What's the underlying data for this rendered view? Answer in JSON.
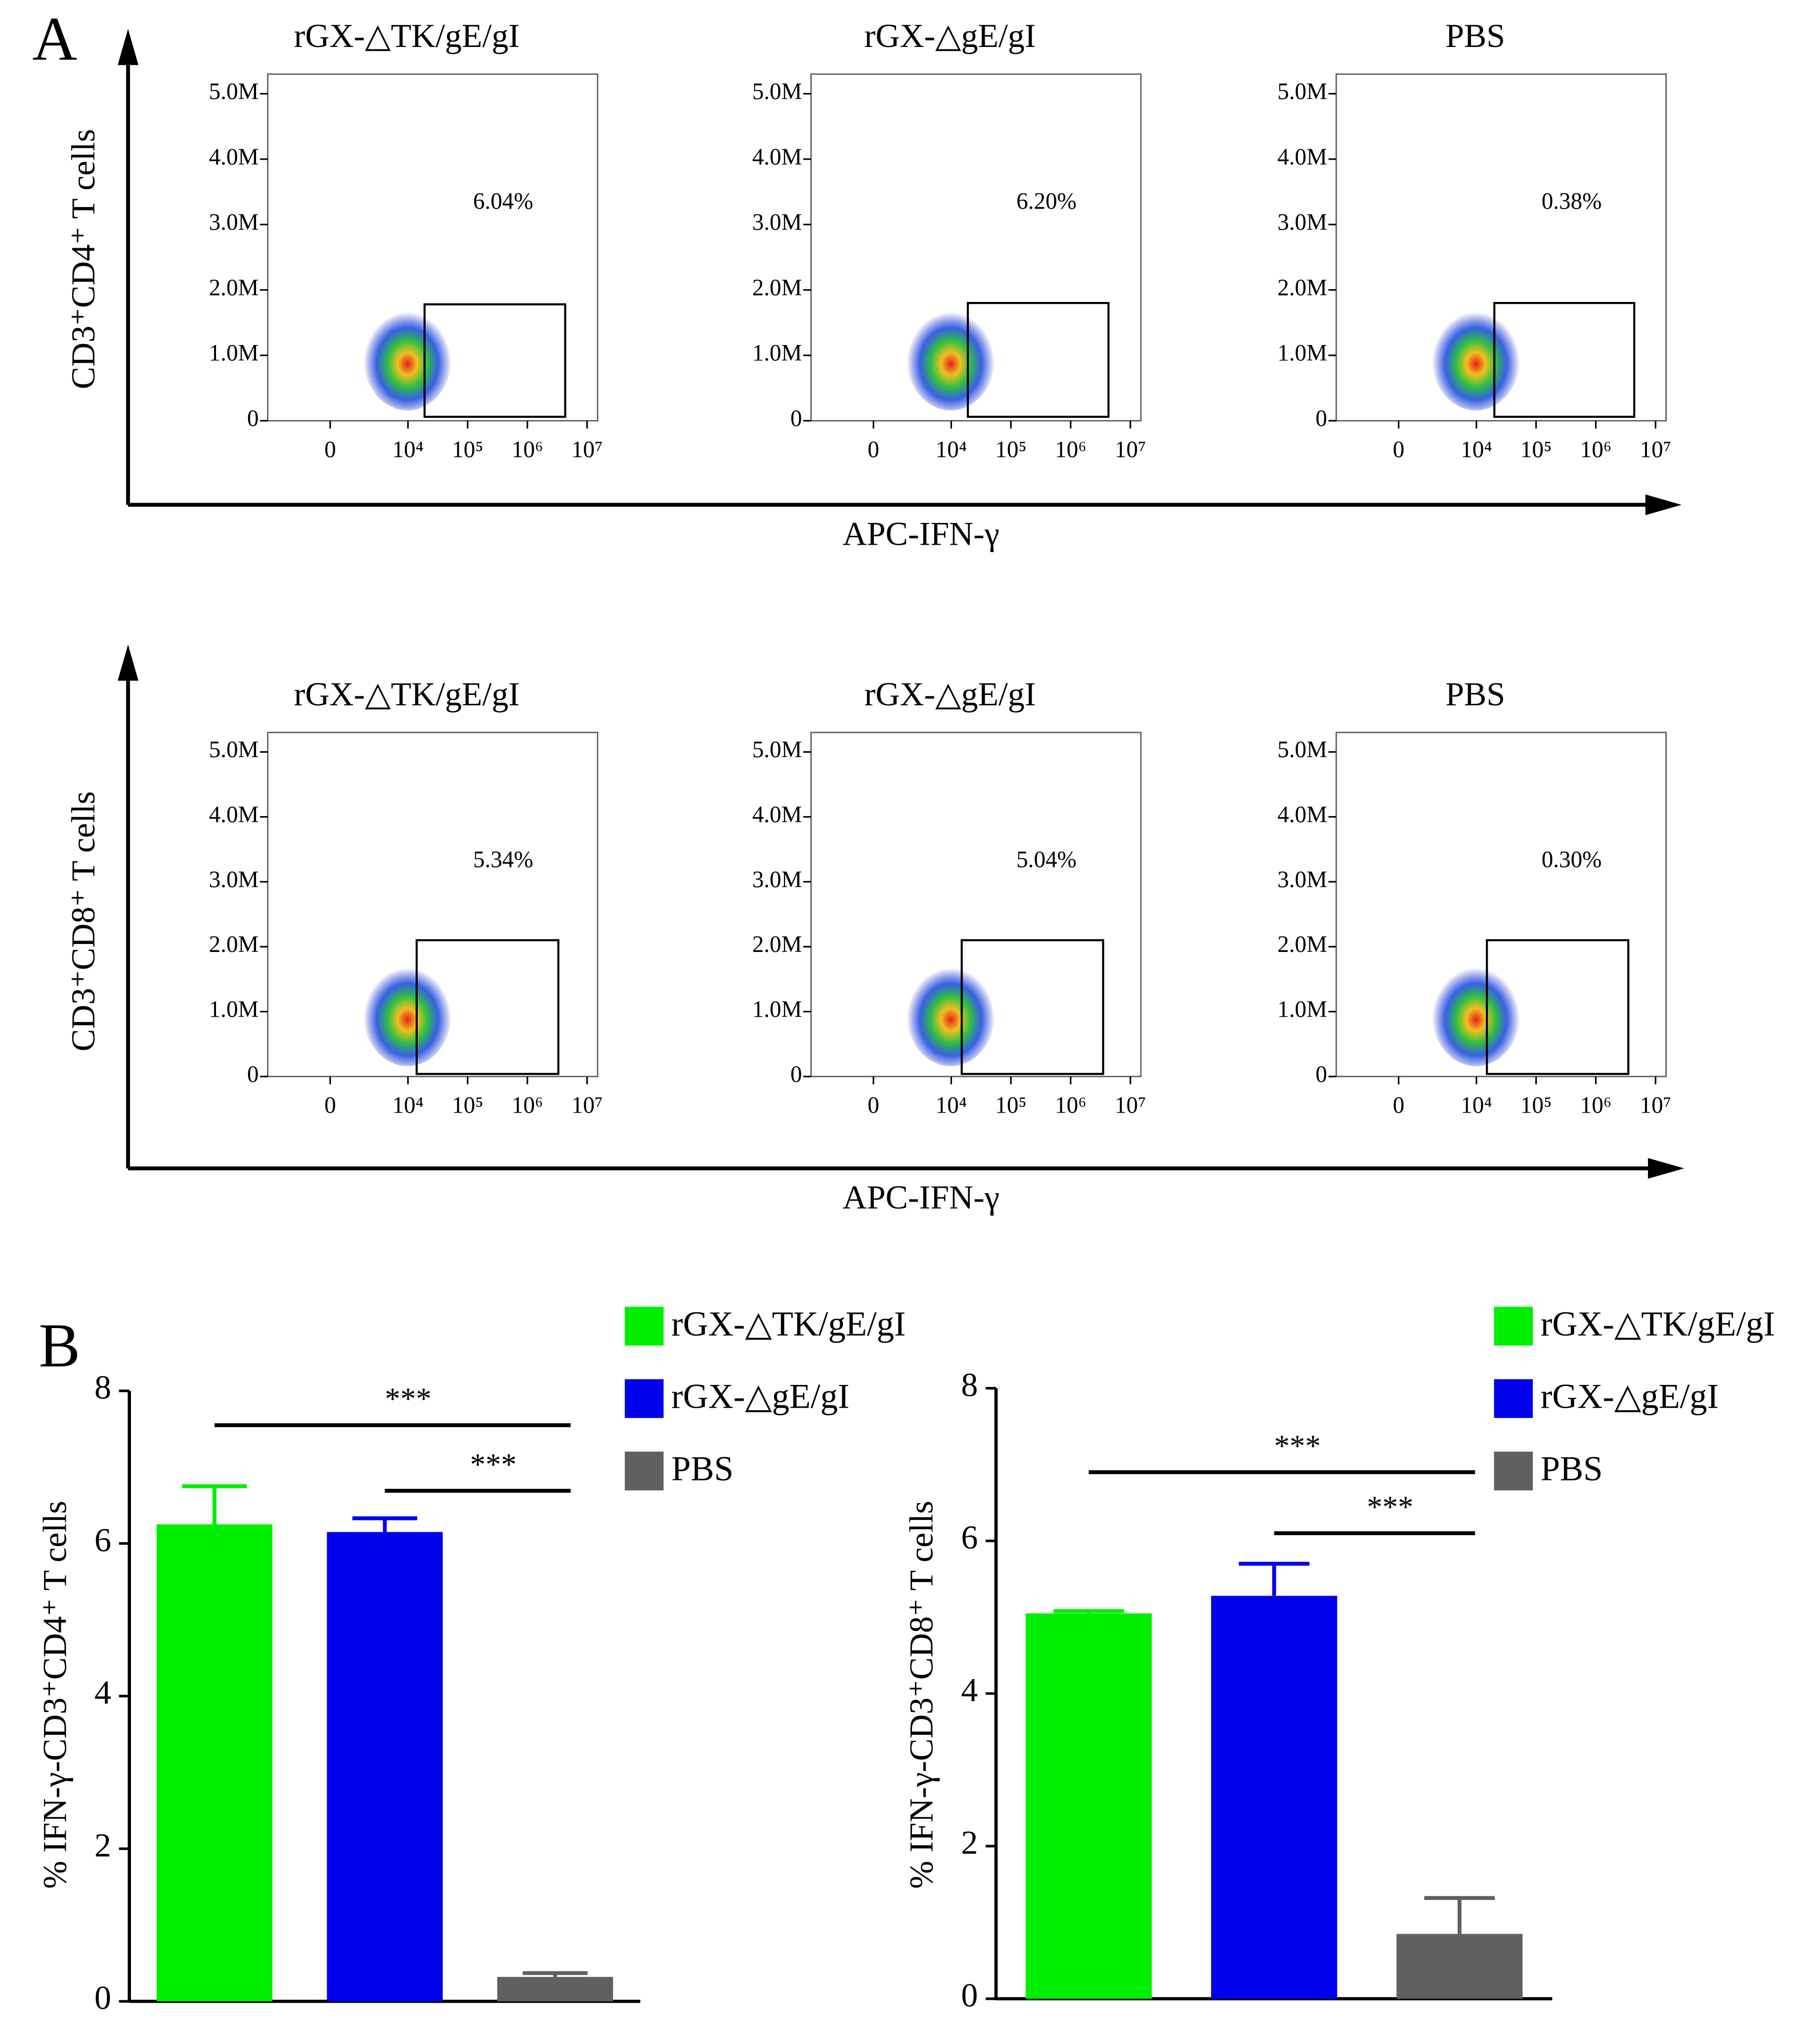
{
  "panel_labels": [
    "A",
    "B"
  ],
  "chart_data": [
    {
      "type": "flow",
      "ylabel": "CD3⁺CD4⁺ T cells",
      "xlabel": "APC-IFN-γ",
      "ylim": [
        0,
        5300000
      ],
      "yticks": [
        0,
        {
          "value": 1000000,
          "label": "1.0M"
        },
        {
          "value": 2000000,
          "label": "2.0M"
        },
        {
          "value": 3000000,
          "label": "3.0M"
        },
        {
          "value": 4000000,
          "label": "4.0M"
        },
        {
          "value": 5000000,
          "label": "5.0M"
        }
      ],
      "xscale": "asinh",
      "xlim": [
        -5500,
        15000000
      ],
      "xticks": [
        0,
        {
          "value": 10000,
          "label": "10⁴"
        },
        {
          "value": 100000,
          "label": "10⁵"
        },
        {
          "value": 1000000,
          "label": "10⁶"
        },
        {
          "value": 10000000,
          "label": "10⁷"
        }
      ],
      "panels": [
        {
          "title": "rGX-△TK/gE/gI",
          "annotation": "6.04%",
          "gate": {
            "x": [
              19000,
              4300000
            ],
            "y": [
              60000,
              1780000
            ]
          }
        },
        {
          "title": "rGX-△gE/gI",
          "annotation": "6.20%",
          "gate": {
            "x": [
              19000,
              4300000
            ],
            "y": [
              60000,
              1800000
            ]
          }
        },
        {
          "title": "PBS",
          "annotation": "0.38%",
          "gate": {
            "x": [
              20000,
              4400000
            ],
            "y": [
              60000,
              1800000
            ]
          }
        }
      ]
    },
    {
      "type": "flow",
      "ylabel": "CD3⁺CD8⁺ T cells",
      "xlabel": "APC-IFN-γ",
      "ylim": [
        0,
        5300000
      ],
      "yticks": [
        0,
        {
          "value": 1000000,
          "label": "1.0M"
        },
        {
          "value": 2000000,
          "label": "2.0M"
        },
        {
          "value": 3000000,
          "label": "3.0M"
        },
        {
          "value": 4000000,
          "label": "4.0M"
        },
        {
          "value": 5000000,
          "label": "5.0M"
        }
      ],
      "xscale": "asinh",
      "xlim": [
        -5500,
        15000000
      ],
      "xticks": [
        0,
        {
          "value": 10000,
          "label": "10⁴"
        },
        {
          "value": 100000,
          "label": "10⁵"
        },
        {
          "value": 1000000,
          "label": "10⁶"
        },
        {
          "value": 10000000,
          "label": "10⁷"
        }
      ],
      "panels": [
        {
          "title": "rGX-△TK/gE/gI",
          "annotation": "5.34%",
          "gate": {
            "x": [
              14000,
              3300000
            ],
            "y": [
              40000,
              2100000
            ]
          }
        },
        {
          "title": "rGX-△gE/gI",
          "annotation": "5.04%",
          "gate": {
            "x": [
              15000,
              3500000
            ],
            "y": [
              40000,
              2100000
            ]
          }
        },
        {
          "title": "PBS",
          "annotation": "0.30%",
          "gate": {
            "x": [
              15000,
              3500000
            ],
            "y": [
              40000,
              2100000
            ]
          }
        }
      ]
    },
    {
      "type": "bar",
      "ylabel": "% IFN-γ-CD3⁺CD4⁺ T cells",
      "categories": [
        "rGX-△TK/gE/gI",
        "rGX-△gE/gI",
        "PBS"
      ],
      "colors": [
        "#00ee00",
        "#0000ee",
        "#606060"
      ],
      "values": [
        6.25,
        6.15,
        0.32
      ],
      "errors": [
        0.5,
        0.18,
        0.05
      ],
      "ylim": [
        0,
        8
      ],
      "yticks": [
        0,
        2,
        4,
        6,
        8
      ],
      "significance": [
        {
          "label": "***",
          "between": [
            0,
            2
          ],
          "y": 7.55
        },
        {
          "label": "***",
          "between": [
            1,
            2
          ],
          "y": 6.69
        }
      ]
    },
    {
      "type": "bar",
      "ylabel": "% IFN-γ-CD3⁺CD8⁺ T cells",
      "categories": [
        "rGX-△TK/gE/gI",
        "rGX-△gE/gI",
        "PBS"
      ],
      "colors": [
        "#00ee00",
        "#0000ee",
        "#606060"
      ],
      "values": [
        5.05,
        5.28,
        0.85
      ],
      "errors": [
        0.03,
        0.42,
        0.47
      ],
      "ylim": [
        0,
        8
      ],
      "yticks": [
        0,
        2,
        4,
        6,
        8
      ],
      "significance": [
        {
          "label": "***",
          "between": [
            0,
            2
          ],
          "y": 6.9
        },
        {
          "label": "***",
          "between": [
            1,
            2
          ],
          "y": 6.1
        }
      ]
    }
  ]
}
